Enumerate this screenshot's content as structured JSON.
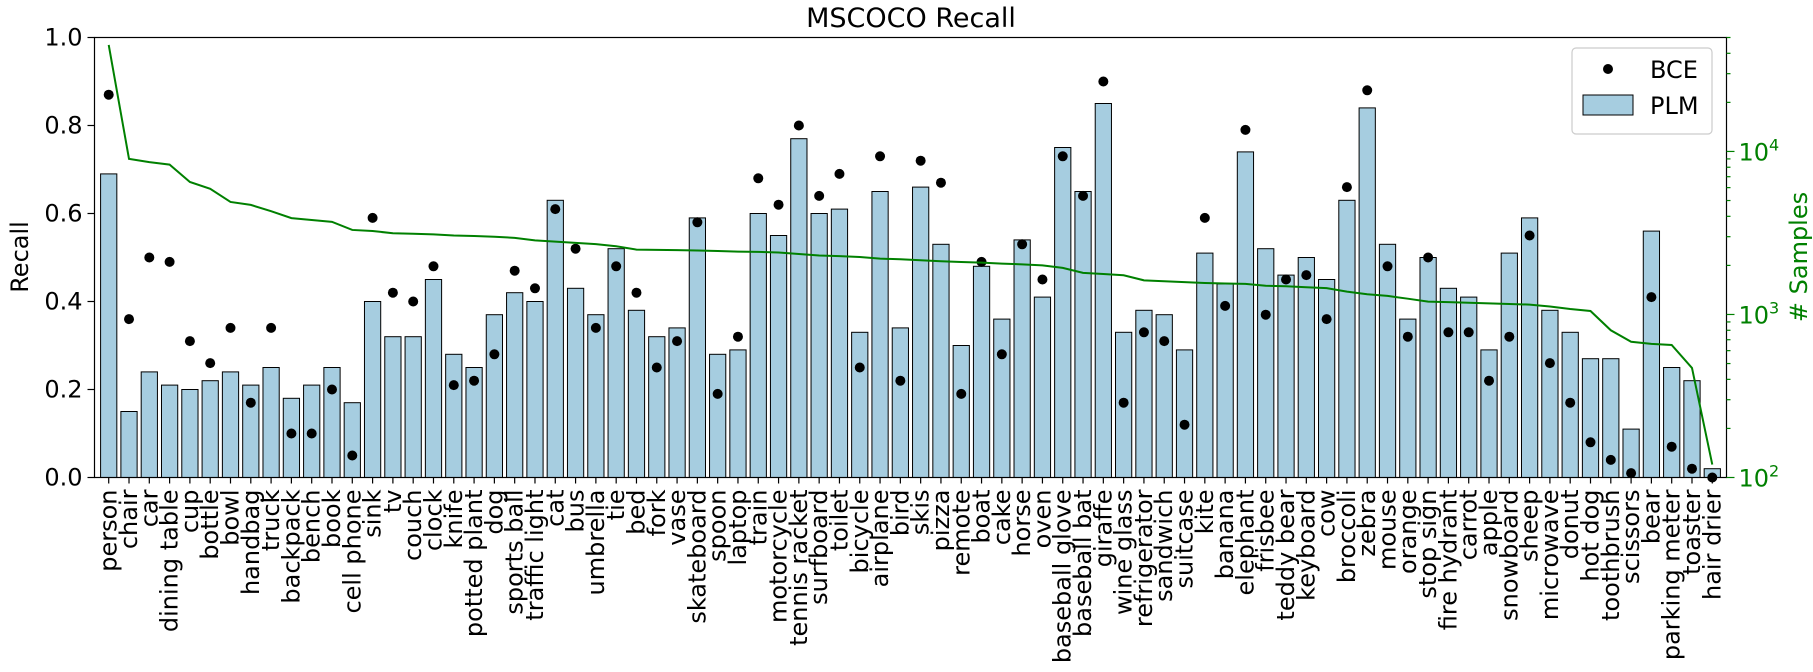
{
  "chart_data": {
    "type": "bar",
    "title": "MSCOCO Recall",
    "ylabel": "Recall",
    "y2label": "# Samples",
    "xlabel": "",
    "ylim": [
      0,
      1.0
    ],
    "y2lim": [
      100,
      50000
    ],
    "y2scale": "log",
    "yticks": [
      "0.0",
      "0.2",
      "0.4",
      "0.6",
      "0.8",
      "1.0"
    ],
    "y2ticks": [
      {
        "base": "10",
        "exp": "2",
        "value": 100
      },
      {
        "base": "10",
        "exp": "3",
        "value": 1000
      },
      {
        "base": "10",
        "exp": "4",
        "value": 10000
      }
    ],
    "legend": {
      "position": "top-right",
      "entries": [
        "BCE",
        "PLM"
      ]
    },
    "colors": {
      "bar": "#a6cde0",
      "line": "#008000",
      "dot": "#000000"
    },
    "categories": [
      "person",
      "chair",
      "car",
      "dining table",
      "cup",
      "bottle",
      "bowl",
      "handbag",
      "truck",
      "backpack",
      "bench",
      "book",
      "cell phone",
      "sink",
      "tv",
      "couch",
      "clock",
      "knife",
      "potted plant",
      "dog",
      "sports ball",
      "traffic light",
      "cat",
      "bus",
      "umbrella",
      "tie",
      "bed",
      "fork",
      "vase",
      "skateboard",
      "spoon",
      "laptop",
      "train",
      "motorcycle",
      "tennis racket",
      "surfboard",
      "toilet",
      "bicycle",
      "airplane",
      "bird",
      "skis",
      "pizza",
      "remote",
      "boat",
      "cake",
      "horse",
      "oven",
      "baseball glove",
      "baseball bat",
      "giraffe",
      "wine glass",
      "refrigerator",
      "sandwich",
      "suitcase",
      "kite",
      "banana",
      "elephant",
      "frisbee",
      "teddy bear",
      "keyboard",
      "cow",
      "broccoli",
      "zebra",
      "mouse",
      "orange",
      "stop sign",
      "fire hydrant",
      "carrot",
      "apple",
      "snowboard",
      "sheep",
      "microwave",
      "donut",
      "hot dog",
      "toothbrush",
      "scissors",
      "bear",
      "parking meter",
      "toaster",
      "hair drier"
    ],
    "series": [
      {
        "name": "PLM",
        "kind": "bar",
        "axis": "left",
        "values": [
          0.69,
          0.15,
          0.24,
          0.21,
          0.2,
          0.22,
          0.24,
          0.21,
          0.25,
          0.18,
          0.21,
          0.25,
          0.17,
          0.4,
          0.32,
          0.32,
          0.45,
          0.28,
          0.25,
          0.37,
          0.42,
          0.4,
          0.63,
          0.43,
          0.37,
          0.52,
          0.38,
          0.32,
          0.34,
          0.59,
          0.28,
          0.29,
          0.6,
          0.55,
          0.77,
          0.6,
          0.61,
          0.33,
          0.65,
          0.34,
          0.66,
          0.53,
          0.3,
          0.48,
          0.36,
          0.54,
          0.41,
          0.75,
          0.65,
          0.85,
          0.33,
          0.38,
          0.37,
          0.29,
          0.51,
          0.44,
          0.74,
          0.52,
          0.46,
          0.5,
          0.45,
          0.63,
          0.84,
          0.53,
          0.36,
          0.5,
          0.43,
          0.41,
          0.29,
          0.51,
          0.59,
          0.38,
          0.33,
          0.27,
          0.27,
          0.11,
          0.56,
          0.25,
          0.22,
          0.02
        ]
      },
      {
        "name": "BCE",
        "kind": "scatter",
        "axis": "left",
        "values": [
          0.87,
          0.36,
          0.5,
          0.49,
          0.31,
          0.26,
          0.34,
          0.17,
          0.34,
          0.1,
          0.1,
          0.2,
          0.05,
          0.59,
          0.42,
          0.4,
          0.48,
          0.21,
          0.22,
          0.28,
          0.47,
          0.43,
          0.61,
          0.52,
          0.34,
          0.48,
          0.42,
          0.25,
          0.31,
          0.58,
          0.19,
          0.32,
          0.68,
          0.62,
          0.8,
          0.64,
          0.69,
          0.25,
          0.73,
          0.22,
          0.72,
          0.67,
          0.19,
          0.49,
          0.28,
          0.53,
          0.45,
          0.73,
          0.64,
          0.9,
          0.17,
          0.33,
          0.31,
          0.12,
          0.59,
          0.39,
          0.79,
          0.37,
          0.45,
          0.46,
          0.36,
          0.66,
          0.88,
          0.48,
          0.32,
          0.5,
          0.33,
          0.33,
          0.22,
          0.32,
          0.55,
          0.26,
          0.17,
          0.08,
          0.04,
          0.01,
          0.41,
          0.07,
          0.02,
          0.0
        ]
      },
      {
        "name": "# Samples",
        "kind": "line",
        "axis": "right",
        "values": [
          45000,
          9000,
          8600,
          8300,
          6500,
          5900,
          4900,
          4700,
          4300,
          3900,
          3800,
          3700,
          3300,
          3250,
          3150,
          3130,
          3100,
          3050,
          3030,
          3000,
          2950,
          2850,
          2800,
          2750,
          2700,
          2620,
          2500,
          2490,
          2480,
          2470,
          2450,
          2430,
          2420,
          2400,
          2350,
          2300,
          2280,
          2250,
          2200,
          2180,
          2150,
          2120,
          2100,
          2080,
          2050,
          2030,
          2000,
          1930,
          1800,
          1770,
          1740,
          1620,
          1600,
          1580,
          1560,
          1550,
          1540,
          1500,
          1490,
          1470,
          1450,
          1380,
          1330,
          1300,
          1250,
          1200,
          1190,
          1180,
          1170,
          1160,
          1150,
          1120,
          1080,
          1050,
          800,
          680,
          660,
          650,
          470,
          120
        ]
      }
    ]
  }
}
